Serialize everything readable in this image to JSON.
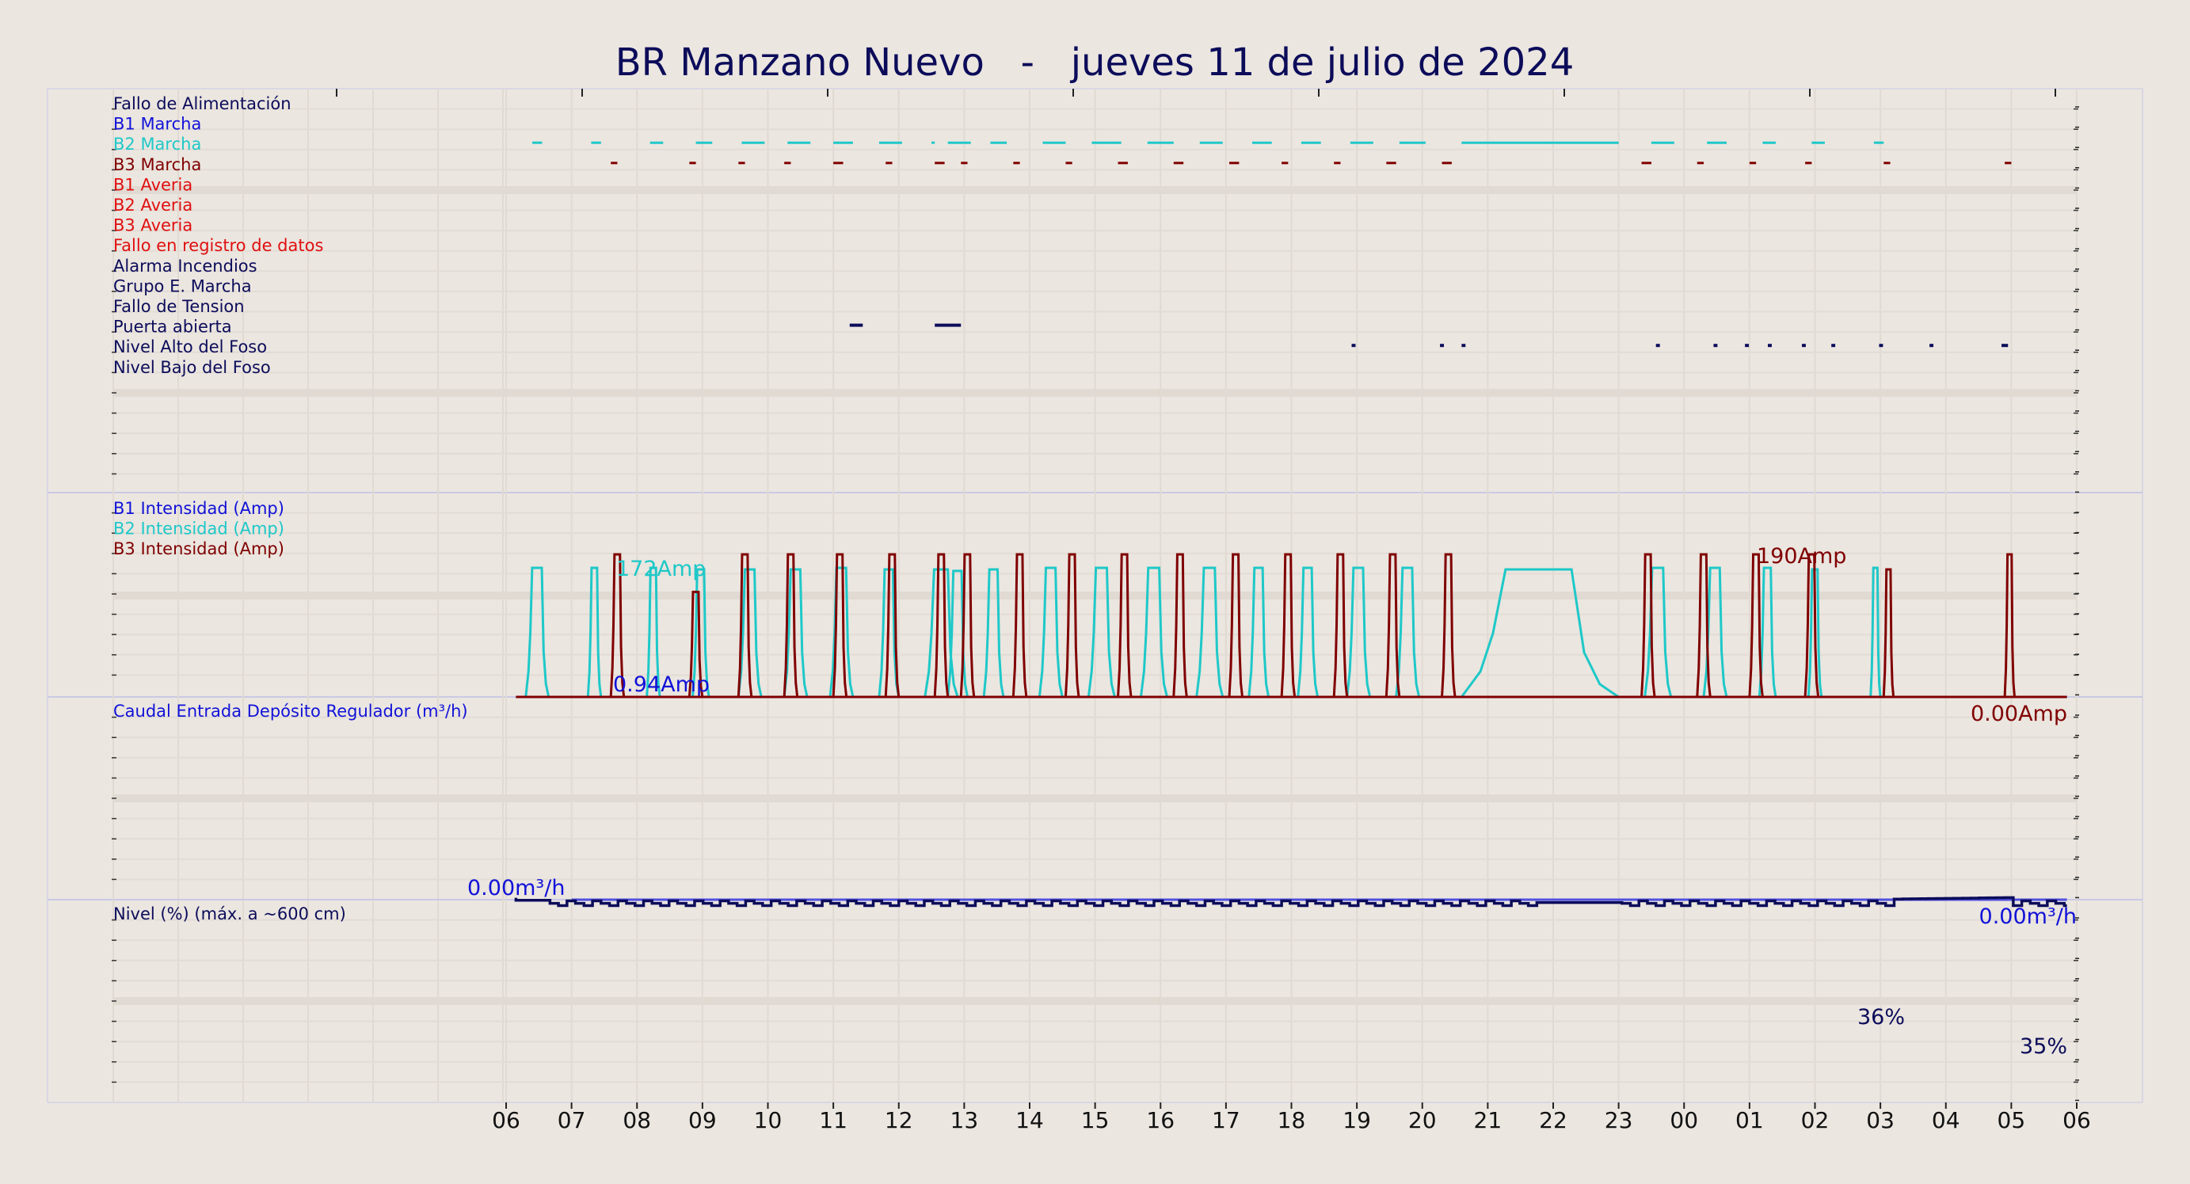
{
  "chart_data": {
    "type": "line",
    "title": "BR Manzano Nuevo   -   jueves 11 de julio de 2024",
    "x_ticks": [
      "06",
      "07",
      "08",
      "09",
      "10",
      "11",
      "12",
      "13",
      "14",
      "15",
      "16",
      "17",
      "18",
      "19",
      "20",
      "21",
      "22",
      "23",
      "00",
      "01",
      "02",
      "03",
      "04",
      "05",
      "06"
    ],
    "x_range_hours": [
      6,
      30
    ],
    "grid": true,
    "colors": {
      "navy": "#0c0c5a",
      "blue": "#1212d8",
      "cyan": "#1ec8c8",
      "maroon": "#800000",
      "red": "#e01010",
      "flow": "#5050e0"
    },
    "panels": [
      {
        "name": "digital-signals",
        "type": "event-bars",
        "signals": [
          {
            "label": "Fallo de Alimentación",
            "color": "#0c0c5a",
            "events": []
          },
          {
            "label": "B1 Marcha",
            "color": "#1212d8",
            "events": []
          },
          {
            "label": "B2 Marcha",
            "color": "#1ec8c8",
            "events": [
              [
                6.4,
                6.55
              ],
              [
                7.3,
                7.45
              ],
              [
                8.2,
                8.4
              ],
              [
                8.9,
                9.15
              ],
              [
                9.6,
                9.95
              ],
              [
                10.3,
                10.65
              ],
              [
                11.0,
                11.3
              ],
              [
                11.7,
                12.05
              ],
              [
                12.5,
                12.55
              ],
              [
                12.75,
                13.1
              ],
              [
                13.4,
                13.65
              ],
              [
                14.2,
                14.55
              ],
              [
                14.95,
                15.4
              ],
              [
                15.8,
                16.2
              ],
              [
                16.6,
                16.95
              ],
              [
                17.4,
                17.7
              ],
              [
                18.15,
                18.45
              ],
              [
                18.9,
                19.25
              ],
              [
                19.65,
                20.05
              ],
              [
                20.6,
                23.0
              ],
              [
                23.5,
                23.85
              ],
              [
                24.35,
                24.65
              ],
              [
                25.2,
                25.4
              ],
              [
                25.95,
                26.15
              ],
              [
                26.9,
                27.05
              ]
            ]
          },
          {
            "label": "B3 Marcha",
            "color": "#800000",
            "events": [
              [
                7.6,
                7.7
              ],
              [
                8.8,
                8.9
              ],
              [
                9.55,
                9.65
              ],
              [
                10.25,
                10.35
              ],
              [
                11.0,
                11.15
              ],
              [
                11.8,
                11.9
              ],
              [
                12.55,
                12.7
              ],
              [
                12.95,
                13.05
              ],
              [
                13.75,
                13.85
              ],
              [
                14.55,
                14.65
              ],
              [
                15.35,
                15.5
              ],
              [
                16.2,
                16.35
              ],
              [
                17.05,
                17.2
              ],
              [
                17.85,
                17.95
              ],
              [
                18.65,
                18.75
              ],
              [
                19.45,
                19.6
              ],
              [
                20.3,
                20.45
              ],
              [
                23.35,
                23.5
              ],
              [
                24.2,
                24.3
              ],
              [
                25.0,
                25.1
              ],
              [
                25.85,
                25.95
              ],
              [
                27.05,
                27.15
              ],
              [
                28.9,
                29.0
              ]
            ]
          },
          {
            "label": "B1 Averia",
            "color": "#e01010",
            "events": []
          },
          {
            "label": "B2 Averia",
            "color": "#e01010",
            "events": []
          },
          {
            "label": "B3 Averia",
            "color": "#e01010",
            "events": []
          },
          {
            "label": "Fallo en registro de datos",
            "color": "#e01010",
            "events": []
          },
          {
            "label": "Alarma Incendios",
            "color": "#0c0c5a",
            "events": []
          },
          {
            "label": "Grupo E. Marcha",
            "color": "#0c0c5a",
            "events": []
          },
          {
            "label": "Fallo de Tension",
            "color": "#0c0c5a",
            "events": []
          },
          {
            "label": "Puerta abierta",
            "color": "#0c0c5a",
            "events": [
              [
                11.25,
                11.45
              ],
              [
                12.55,
                12.95
              ]
            ]
          },
          {
            "label": "Nivel Alto del Foso",
            "color": "#0c0c5a",
            "events": [
              [
                18.92,
                18.98
              ],
              [
                20.27,
                20.33
              ],
              [
                20.6,
                20.66
              ],
              [
                23.57,
                23.63
              ],
              [
                24.45,
                24.51
              ],
              [
                24.93,
                24.99
              ],
              [
                25.28,
                25.34
              ],
              [
                25.8,
                25.86
              ],
              [
                26.25,
                26.31
              ],
              [
                26.98,
                27.04
              ],
              [
                27.75,
                27.81
              ],
              [
                28.85,
                28.95
              ]
            ]
          },
          {
            "label": "Nivel Bajo del Foso",
            "color": "#0c0c5a",
            "events": []
          }
        ]
      },
      {
        "name": "pump-current",
        "type": "step-line",
        "unit": "Amp",
        "y_range": [
          0,
          230
        ],
        "series": [
          {
            "name": "B1 Intensidad (Amp)",
            "color": "#1212d8",
            "points": [
              [
                6.15,
                0
              ],
              [
                29.85,
                0
              ]
            ]
          },
          {
            "name": "B2 Intensidad (Amp)",
            "color": "#1ec8c8",
            "runs": [
              [
                6.3,
                6.65,
                172
              ],
              [
                7.25,
                7.45,
                172
              ],
              [
                8.15,
                8.35,
                172
              ],
              [
                8.85,
                9.1,
                170
              ],
              [
                9.55,
                9.9,
                170
              ],
              [
                10.25,
                10.6,
                170
              ],
              [
                10.95,
                11.3,
                172
              ],
              [
                11.7,
                12.0,
                170
              ],
              [
                12.4,
                12.9,
                170
              ],
              [
                12.75,
                13.05,
                168
              ],
              [
                13.3,
                13.6,
                170
              ],
              [
                14.15,
                14.5,
                172
              ],
              [
                14.9,
                15.3,
                172
              ],
              [
                15.7,
                16.1,
                172
              ],
              [
                16.55,
                16.95,
                172
              ],
              [
                17.35,
                17.65,
                172
              ],
              [
                18.1,
                18.4,
                172
              ],
              [
                18.85,
                19.2,
                172
              ],
              [
                19.6,
                19.95,
                172
              ],
              [
                20.6,
                23.0,
                170
              ],
              [
                23.4,
                23.8,
                172
              ],
              [
                24.3,
                24.65,
                172
              ],
              [
                25.15,
                25.4,
                172
              ],
              [
                25.9,
                26.1,
                170
              ],
              [
                26.85,
                27.0,
                172
              ]
            ]
          },
          {
            "name": "B3 Intensidad (Amp)",
            "color": "#800000",
            "runs": [
              [
                7.6,
                7.8,
                190
              ],
              [
                8.8,
                9.0,
                140
              ],
              [
                9.55,
                9.75,
                190
              ],
              [
                10.25,
                10.45,
                190
              ],
              [
                11.0,
                11.2,
                190
              ],
              [
                11.8,
                12.0,
                190
              ],
              [
                12.55,
                12.75,
                190
              ],
              [
                12.95,
                13.15,
                190
              ],
              [
                13.75,
                13.95,
                190
              ],
              [
                14.55,
                14.75,
                190
              ],
              [
                15.35,
                15.55,
                190
              ],
              [
                16.2,
                16.4,
                190
              ],
              [
                17.05,
                17.25,
                190
              ],
              [
                17.85,
                18.05,
                190
              ],
              [
                18.65,
                18.85,
                190
              ],
              [
                19.45,
                19.65,
                190
              ],
              [
                20.3,
                20.5,
                190
              ],
              [
                23.35,
                23.55,
                190
              ],
              [
                24.2,
                24.4,
                190
              ],
              [
                25.0,
                25.2,
                190
              ],
              [
                25.85,
                26.05,
                190
              ],
              [
                27.05,
                27.2,
                170
              ],
              [
                28.9,
                29.05,
                190
              ]
            ]
          }
        ],
        "annotations": [
          {
            "text": "172Amp",
            "color": "#1ec8c8"
          },
          {
            "text": "0.94Amp",
            "color": "#1212d8"
          },
          {
            "text": "190Amp",
            "color": "#800000"
          },
          {
            "text": "0.00Amp",
            "color": "#800000"
          }
        ]
      },
      {
        "name": "inflow",
        "type": "line",
        "unit": "m³/h",
        "series": [
          {
            "name": "Caudal Entrada Depósito Regulador (m³/h)",
            "color": "#5050e0",
            "points": [
              [
                7.0,
                0
              ],
              [
                29.85,
                0
              ]
            ]
          }
        ],
        "annotations": [
          {
            "text": "0.00m³/h",
            "color": "#1212d8"
          },
          {
            "text": "0.00m³/h",
            "color": "#1212d8"
          }
        ]
      },
      {
        "name": "level",
        "type": "step-line",
        "unit": "%",
        "y_range": [
          0,
          100
        ],
        "series": [
          {
            "name": "Nivel (%) (máx. a ~600 cm)",
            "color": "#0c0c5a",
            "baseline": 35,
            "start": 36,
            "peak": 36,
            "end": 35
          }
        ],
        "annotations": [
          {
            "text": "36%",
            "color": "#0c0c5a"
          },
          {
            "text": "35%",
            "color": "#0c0c5a"
          }
        ]
      }
    ]
  }
}
